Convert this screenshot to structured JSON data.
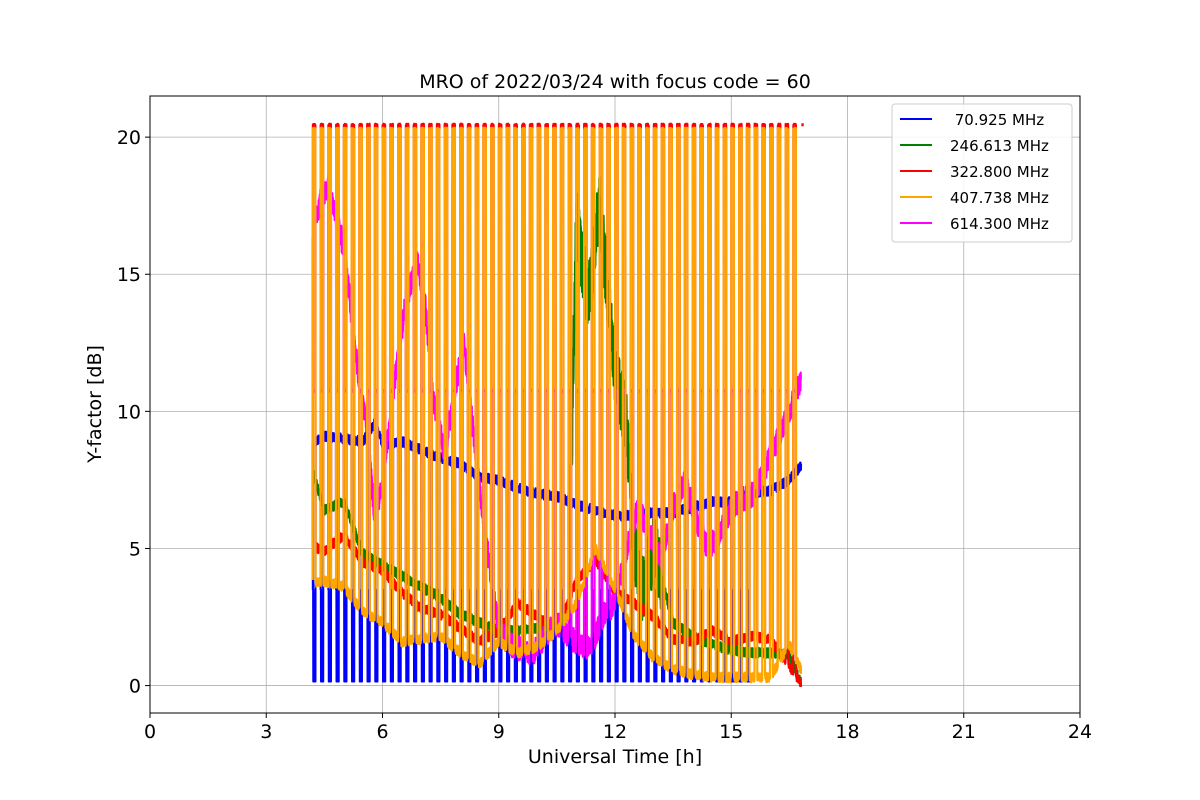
{
  "chart_data": {
    "type": "line",
    "title": "MRO of 2022/03/24 with focus code = 60",
    "xlabel": "Universal Time [h]",
    "ylabel": "Y-factor [dB]",
    "xlim": [
      0,
      24
    ],
    "ylim": [
      -1,
      21.5
    ],
    "xticks": [
      0,
      3,
      6,
      9,
      12,
      15,
      18,
      21,
      24
    ],
    "yticks": [
      0,
      5,
      10,
      15,
      20
    ],
    "grid": true,
    "legend_position": "top-right",
    "cycle": {
      "start_h": 4.2,
      "end_h": 16.8,
      "period_h": 0.2,
      "cold_fraction": 0.35
    },
    "series": [
      {
        "name": " 70.925 MHz",
        "color": "#0000ff",
        "x": [
          4.2,
          4.5,
          5.0,
          5.5,
          5.8,
          6.0,
          6.5,
          7.0,
          7.5,
          8.0,
          8.5,
          9.0,
          9.5,
          10.0,
          10.5,
          11.0,
          11.5,
          12.0,
          12.5,
          13.0,
          13.5,
          14.0,
          14.5,
          15.0,
          15.5,
          16.0,
          16.5,
          16.8
        ],
        "y": [
          8.8,
          9.1,
          9.0,
          8.9,
          9.6,
          8.8,
          8.9,
          8.6,
          8.3,
          8.1,
          7.6,
          7.5,
          7.2,
          7.0,
          6.9,
          6.6,
          6.4,
          6.2,
          6.2,
          6.3,
          6.3,
          6.5,
          6.7,
          6.7,
          7.0,
          7.1,
          7.5,
          8.0
        ],
        "floor": 0.15,
        "floor_until_h": 15.6,
        "floor_high": 3.5
      },
      {
        "name": "246.613 MHz",
        "color": "#008000",
        "x": [
          4.2,
          4.5,
          5.0,
          5.5,
          6.0,
          6.5,
          7.0,
          7.5,
          8.0,
          8.5,
          9.0,
          9.5,
          10.0,
          10.5,
          10.8,
          11.0,
          11.3,
          11.6,
          12.0,
          12.3,
          12.5,
          12.7,
          13.0,
          13.5,
          14.0,
          14.5,
          15.0,
          15.5,
          16.0,
          16.5,
          16.8
        ],
        "y": [
          7.8,
          6.4,
          6.7,
          4.8,
          4.4,
          4.0,
          3.6,
          3.2,
          2.6,
          2.3,
          2.0,
          2.0,
          2.1,
          2.3,
          2.6,
          17.0,
          14.0,
          17.5,
          11.5,
          9.5,
          5.0,
          3.5,
          5.0,
          2.3,
          1.8,
          1.5,
          1.3,
          1.2,
          1.2,
          1.1,
          0.1
        ]
      },
      {
        "name": "322.800 MHz",
        "color": "#ff0000",
        "x": [
          4.2,
          4.5,
          5.0,
          5.5,
          6.0,
          6.5,
          7.0,
          7.5,
          8.0,
          8.5,
          9.0,
          9.5,
          10.0,
          10.5,
          11.0,
          11.5,
          12.0,
          12.5,
          13.0,
          13.5,
          14.0,
          14.5,
          15.0,
          15.5,
          16.0,
          16.5,
          16.8
        ],
        "y": [
          5.1,
          4.9,
          5.5,
          4.5,
          4.2,
          3.4,
          2.8,
          2.6,
          2.1,
          1.6,
          2.0,
          3.0,
          2.5,
          2.0,
          3.8,
          4.6,
          3.4,
          3.0,
          2.5,
          1.7,
          1.6,
          2.0,
          1.6,
          1.8,
          1.7,
          0.7,
          0.1
        ],
        "floor": 0.15,
        "ceiling": 20.45
      },
      {
        "name": "407.738 MHz",
        "color": "#ffa500",
        "x": [
          4.2,
          4.5,
          5.0,
          5.5,
          6.0,
          6.5,
          7.0,
          7.5,
          8.0,
          8.5,
          9.0,
          9.5,
          10.0,
          10.5,
          11.0,
          11.5,
          12.0,
          12.5,
          13.0,
          13.5,
          14.0,
          14.5,
          15.0,
          15.5,
          16.0,
          16.5,
          16.8
        ],
        "y": [
          3.7,
          3.8,
          3.6,
          2.7,
          2.3,
          1.6,
          1.7,
          1.8,
          1.2,
          0.8,
          1.6,
          1.2,
          1.4,
          2.0,
          3.0,
          5.0,
          3.5,
          1.8,
          1.0,
          0.6,
          0.4,
          0.3,
          0.3,
          0.3,
          0.3,
          1.5,
          0.6
        ],
        "floor": 0.15,
        "ceiling": 20.3
      },
      {
        "name": "614.300 MHz",
        "color": "#ff00ff",
        "x": [
          4.2,
          4.4,
          4.6,
          4.8,
          5.0,
          5.2,
          5.4,
          5.6,
          5.8,
          6.0,
          6.3,
          6.6,
          6.9,
          7.1,
          7.3,
          7.6,
          7.9,
          8.1,
          8.4,
          8.6,
          8.8,
          9.0,
          9.3,
          9.6,
          9.9,
          10.2,
          10.5,
          10.8,
          11.1,
          11.4,
          11.7,
          12.0,
          12.3,
          12.6,
          12.9,
          13.2,
          13.5,
          13.8,
          14.1,
          14.4,
          14.7,
          15.0,
          15.3,
          15.6,
          15.9,
          16.2,
          16.5,
          16.8
        ],
        "y": [
          16.5,
          17.8,
          18.2,
          17.0,
          16.0,
          13.5,
          11.0,
          9.5,
          6.0,
          7.5,
          11.0,
          14.0,
          15.5,
          14.0,
          10.5,
          8.5,
          11.0,
          12.5,
          8.5,
          6.0,
          4.0,
          2.0,
          1.5,
          1.3,
          1.2,
          1.8,
          2.3,
          1.8,
          1.5,
          1.4,
          2.6,
          3.0,
          5.0,
          6.5,
          5.5,
          4.6,
          6.5,
          7.5,
          6.0,
          5.0,
          5.5,
          6.5,
          6.8,
          7.0,
          8.0,
          9.0,
          10.0,
          11.2
        ],
        "ceiling": 10.75
      }
    ]
  }
}
